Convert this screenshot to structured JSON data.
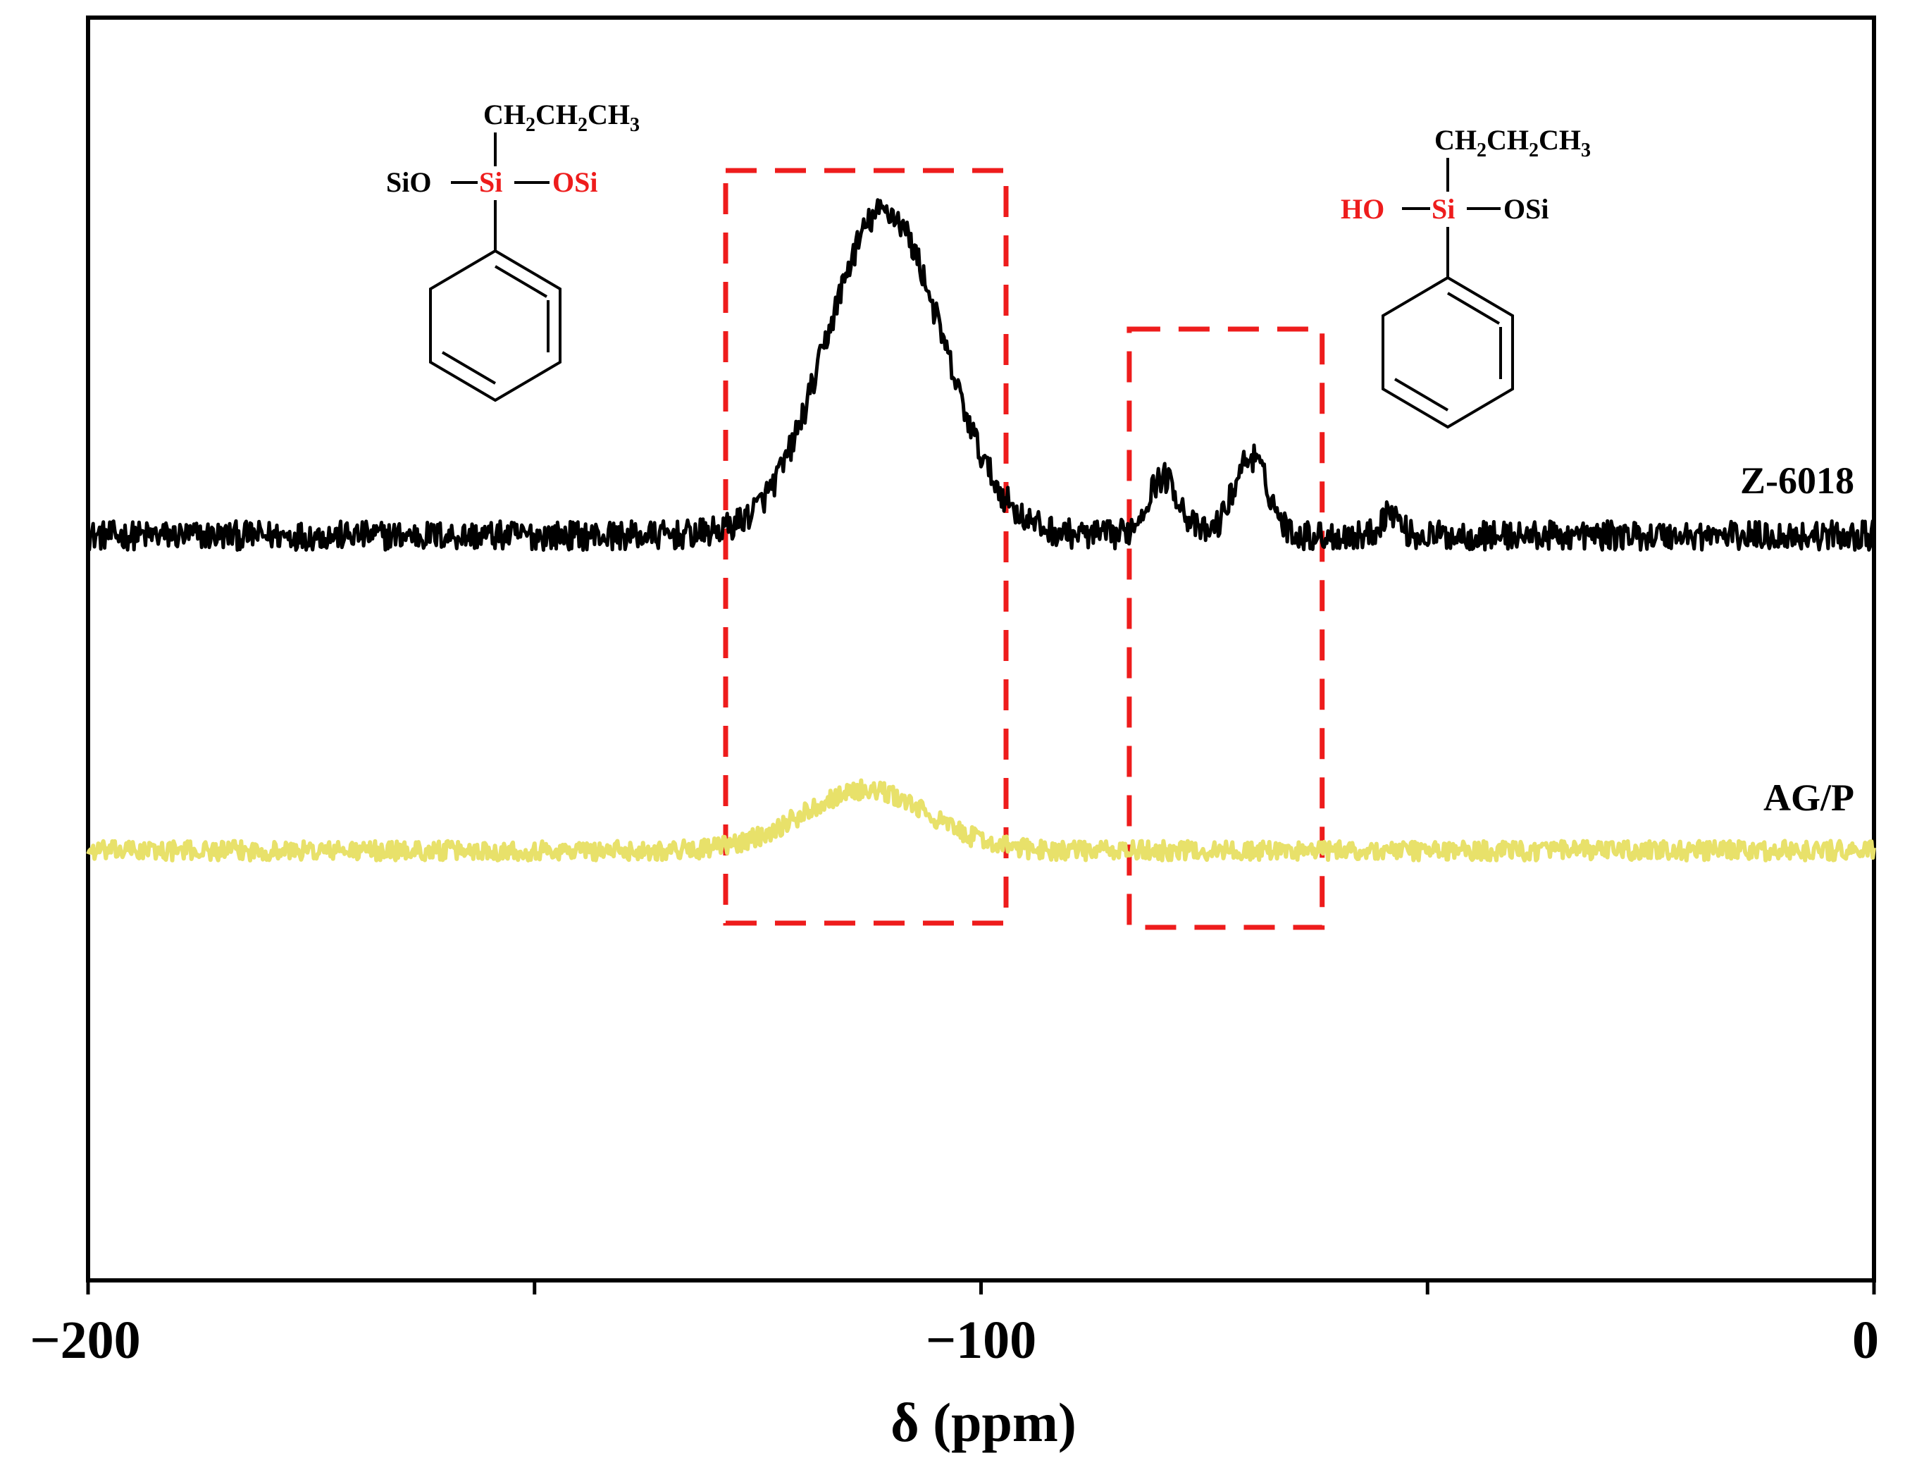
{
  "chart_data": {
    "type": "line",
    "title": "",
    "xlabel": "δ (ppm)",
    "ylabel": "",
    "xlim": [
      -200,
      0
    ],
    "x_ticks": [
      -200,
      -150,
      -100,
      -50,
      0
    ],
    "x_tick_labels": [
      "−200",
      "",
      "−100",
      "",
      "0"
    ],
    "y_ticks": [],
    "grid": false,
    "legend": "none",
    "series": [
      {
        "name": "Z-6018",
        "color": "#000000",
        "baseline": 0.0,
        "noise": 0.012,
        "peaks": [
          {
            "center": -110.8,
            "height": 0.268,
            "width": 6.5
          },
          {
            "center": -79.6,
            "height": 0.048,
            "width": 1.8
          },
          {
            "center": -69.8,
            "height": 0.065,
            "width": 1.9
          },
          {
            "center": -54.2,
            "height": 0.02,
            "width": 1.0
          }
        ]
      },
      {
        "name": "AG/P",
        "color": "#e8e16a",
        "baseline": -0.26,
        "noise": 0.008,
        "peaks": [
          {
            "center": -113,
            "height": 0.05,
            "width": 7
          }
        ]
      }
    ],
    "annotations": [
      {
        "type": "dashed-box",
        "color": "#ee1c1c",
        "x_range": [
          -128.6,
          -97.2
        ]
      },
      {
        "type": "dashed-box",
        "color": "#ee1c1c",
        "x_range": [
          -83.4,
          -61.8
        ]
      }
    ],
    "structures": [
      {
        "top": "CH2CH2CH3",
        "left": "SiO",
        "center": "Si",
        "right": "OSi",
        "highlighted": [
          "Si",
          "OSi"
        ]
      },
      {
        "top": "CH2CH2CH3",
        "left": "HO",
        "center": "Si",
        "right": "OSi",
        "highlighted": [
          "HO",
          "Si"
        ]
      }
    ]
  }
}
